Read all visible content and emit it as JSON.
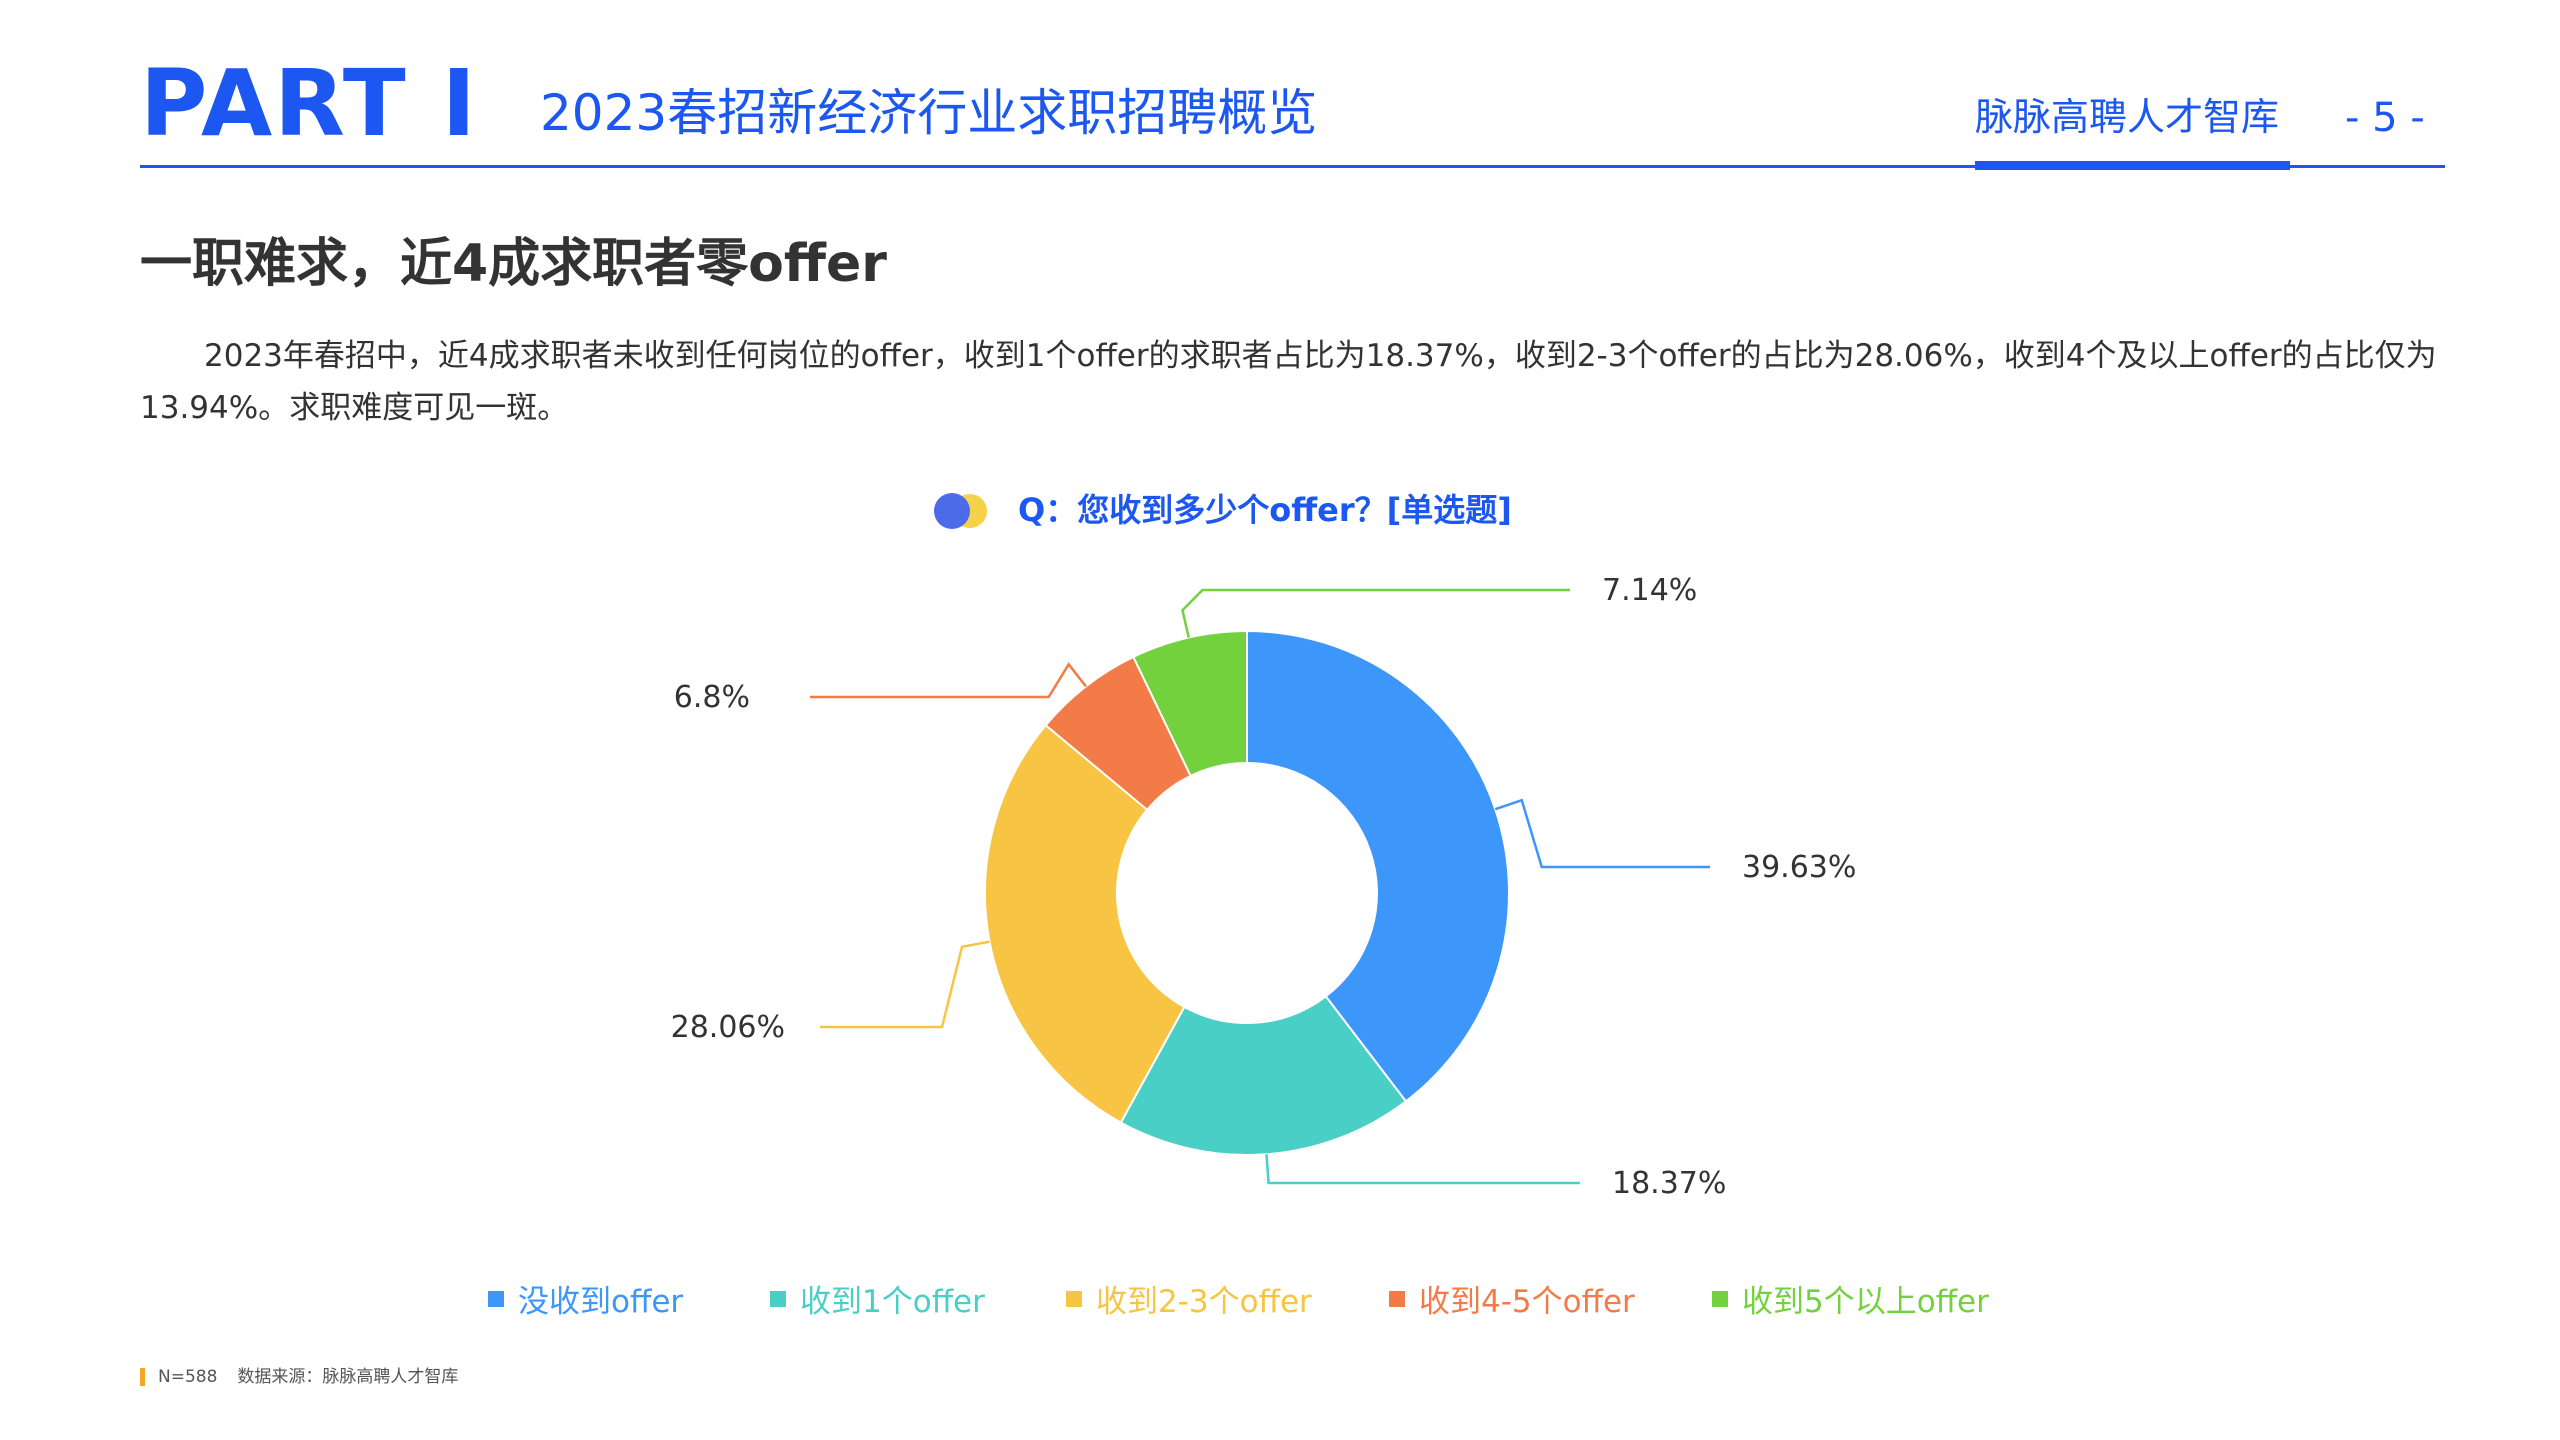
{
  "header": {
    "part": "PART Ⅰ",
    "title": "2023春招新经济行业求职招聘概览",
    "brand": "脉脉高聘人才智库",
    "page": "- 5 -"
  },
  "heading": "一职难求，近4成求职者零offer",
  "description": "2023年春招中，近4成求职者未收到任何岗位的offer，收到1个offer的求职者占比为18.37%，收到2-3个offer的占比为28.06%，收到4个及以上offer的占比仅为13.94%。求职难度可见一斑。",
  "question": "Q：您收到多少个offer？[单选题]",
  "colors": {
    "accent": "#1B57F0",
    "icon_blue": "#4B6BE8",
    "icon_yellow": "#F5D24A"
  },
  "chart_data": {
    "type": "pie",
    "donut": true,
    "categories": [
      "没收到offer",
      "收到1个offer",
      "收到2-3个offer",
      "收到4-5个offer",
      "收到5个以上offer"
    ],
    "values": [
      39.63,
      18.37,
      28.06,
      6.8,
      7.14
    ],
    "labels": [
      "39.63%",
      "18.37%",
      "28.06%",
      "6.8%",
      "7.14%"
    ],
    "colors": [
      "#3D96FA",
      "#4ACFC7",
      "#F7C543",
      "#F27B48",
      "#74D13E"
    ],
    "legend": "bottom"
  },
  "footer": {
    "sample": "N=588",
    "source": "数据来源：脉脉高聘人才智库"
  }
}
